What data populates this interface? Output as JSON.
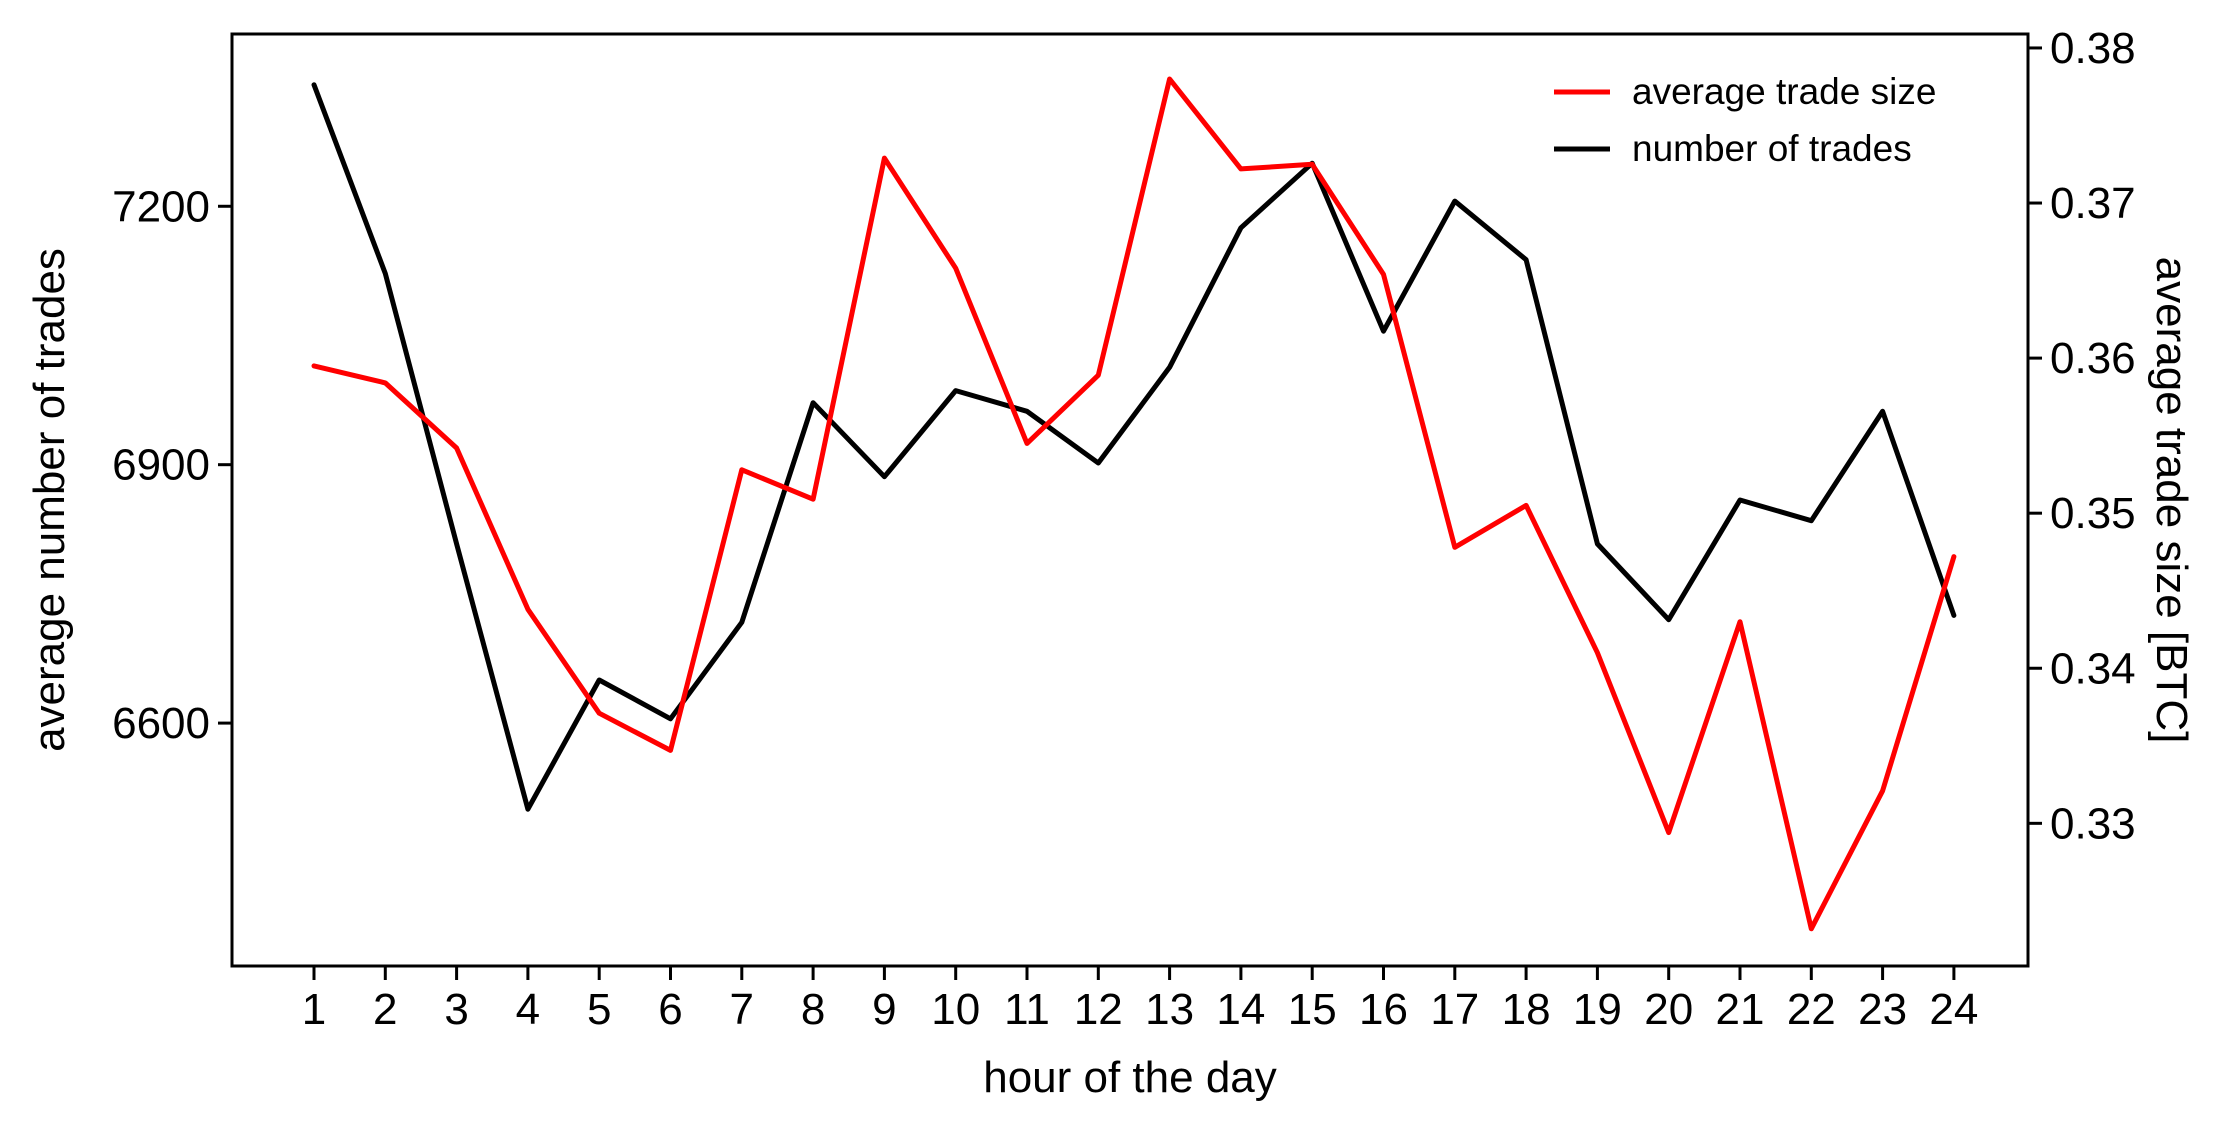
{
  "chart_data": {
    "type": "line",
    "title": "",
    "xlabel": "hour of the day",
    "ylabel_left": "average number of trades",
    "ylabel_right": "average trade size [BTC]",
    "x": [
      1,
      2,
      3,
      4,
      5,
      6,
      7,
      8,
      9,
      10,
      11,
      12,
      13,
      14,
      15,
      16,
      17,
      18,
      19,
      20,
      21,
      22,
      23,
      24
    ],
    "ylim_left": [
      6318,
      7400
    ],
    "ylim_right": [
      0.3208,
      0.3809
    ],
    "yticks_left": [
      "6600",
      "6900",
      "7200"
    ],
    "yticks_right": [
      "0.33",
      "0.34",
      "0.35",
      "0.36",
      "0.37",
      "0.38"
    ],
    "grid": false,
    "legend_position": "top-right",
    "series": [
      {
        "name": "average trade size",
        "axis": "right",
        "color": "#ff0000",
        "values": [
          0.3595,
          0.3584,
          0.3542,
          0.3438,
          0.3371,
          0.3347,
          0.3528,
          0.3509,
          0.3729,
          0.3658,
          0.3545,
          0.3589,
          0.378,
          0.3722,
          0.3725,
          0.3654,
          0.3478,
          0.3505,
          0.341,
          0.3294,
          0.343,
          0.3232,
          0.3321,
          0.3472
        ]
      },
      {
        "name": "number of trades",
        "axis": "left",
        "color": "#000000",
        "values": [
          7341,
          7122,
          6808,
          6500,
          6650,
          6605,
          6717,
          6972,
          6886,
          6986,
          6962,
          6902,
          7013,
          7175,
          7250,
          7055,
          7206,
          7138,
          6808,
          6720,
          6859,
          6835,
          6962,
          6725
        ]
      }
    ]
  }
}
